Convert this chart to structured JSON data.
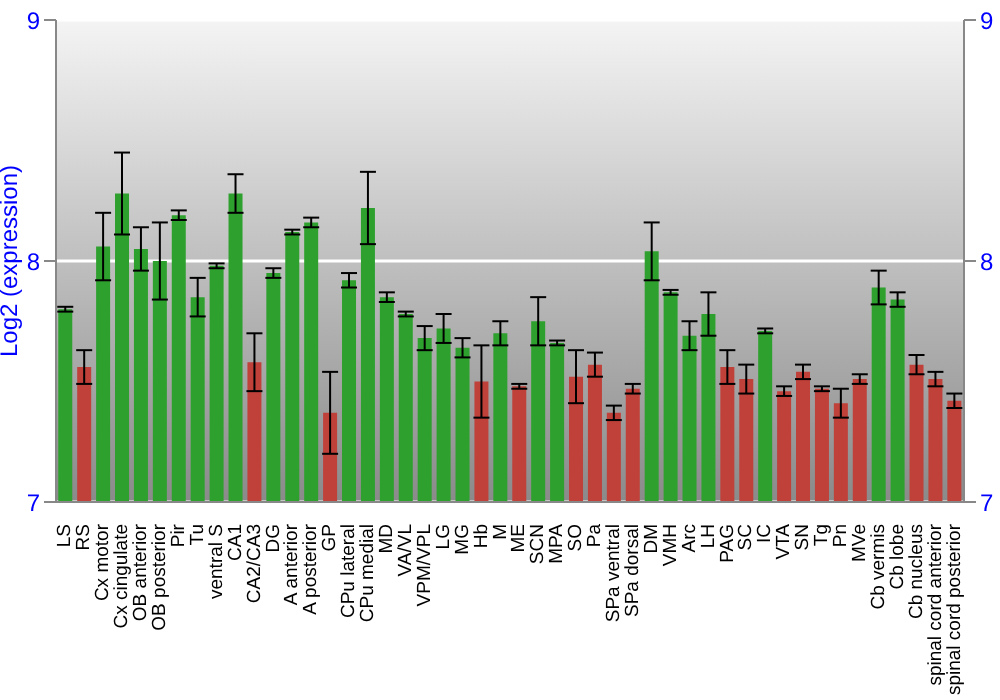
{
  "chart_data": {
    "type": "bar",
    "ylabel": "Log2 (expression)",
    "categories": [
      "LS",
      "RS",
      "Cx motor",
      "Cx cingulate",
      "OB anterior",
      "OB posterior",
      "Pir",
      "Tu",
      "ventral S",
      "CA1",
      "CA2/CA3",
      "DG",
      "A anterior",
      "A posterior",
      "GP",
      "CPu lateral",
      "CPu medial",
      "MD",
      "VA/VL",
      "VPM/VPL",
      "LG",
      "MG",
      "Hb",
      "M",
      "ME",
      "SCN",
      "MPA",
      "SO",
      "Pa",
      "SPa ventral",
      "SPa dorsal",
      "DM",
      "VMH",
      "Arc",
      "LH",
      "PAG",
      "SC",
      "IC",
      "VTA",
      "SN",
      "Tg",
      "Pn",
      "MVe",
      "Cb vermis",
      "Cb lobe",
      "Cb nucleus",
      "spinal cord anterior",
      "spinal cord posterior"
    ],
    "values": [
      7.8,
      7.56,
      8.06,
      8.28,
      8.05,
      8.0,
      8.19,
      7.85,
      7.98,
      8.28,
      7.58,
      7.95,
      8.12,
      8.16,
      7.37,
      7.92,
      8.22,
      7.85,
      7.78,
      7.68,
      7.72,
      7.64,
      7.5,
      7.7,
      7.48,
      7.75,
      7.66,
      7.52,
      7.57,
      7.37,
      7.47,
      8.04,
      7.87,
      7.69,
      7.78,
      7.56,
      7.51,
      7.71,
      7.46,
      7.54,
      7.47,
      7.41,
      7.51,
      7.89,
      7.84,
      7.57,
      7.51,
      7.42
    ],
    "errors": [
      0.01,
      0.07,
      0.14,
      0.17,
      0.09,
      0.16,
      0.02,
      0.08,
      0.01,
      0.08,
      0.12,
      0.02,
      0.01,
      0.02,
      0.17,
      0.03,
      0.15,
      0.02,
      0.01,
      0.05,
      0.06,
      0.04,
      0.15,
      0.05,
      0.01,
      0.1,
      0.01,
      0.11,
      0.05,
      0.03,
      0.02,
      0.12,
      0.01,
      0.06,
      0.09,
      0.07,
      0.06,
      0.01,
      0.02,
      0.03,
      0.01,
      0.06,
      0.02,
      0.07,
      0.03,
      0.04,
      0.03,
      0.03
    ],
    "colors": [
      "#2ea02e",
      "#c0403a",
      "#2ea02e",
      "#2ea02e",
      "#2ea02e",
      "#2ea02e",
      "#2ea02e",
      "#2ea02e",
      "#2ea02e",
      "#2ea02e",
      "#c0403a",
      "#2ea02e",
      "#2ea02e",
      "#2ea02e",
      "#c0403a",
      "#2ea02e",
      "#2ea02e",
      "#2ea02e",
      "#2ea02e",
      "#2ea02e",
      "#2ea02e",
      "#2ea02e",
      "#c0403a",
      "#2ea02e",
      "#c0403a",
      "#2ea02e",
      "#2ea02e",
      "#c0403a",
      "#c0403a",
      "#c0403a",
      "#c0403a",
      "#2ea02e",
      "#2ea02e",
      "#2ea02e",
      "#2ea02e",
      "#c0403a",
      "#c0403a",
      "#2ea02e",
      "#c0403a",
      "#c0403a",
      "#c0403a",
      "#c0403a",
      "#c0403a",
      "#2ea02e",
      "#2ea02e",
      "#c0403a",
      "#c0403a",
      "#c0403a"
    ],
    "ylim": [
      7,
      9
    ],
    "yticks": [
      7,
      8,
      9
    ],
    "y2lim": [
      7,
      9
    ],
    "y2ticks": [
      7,
      8,
      9
    ],
    "grid": "y"
  }
}
